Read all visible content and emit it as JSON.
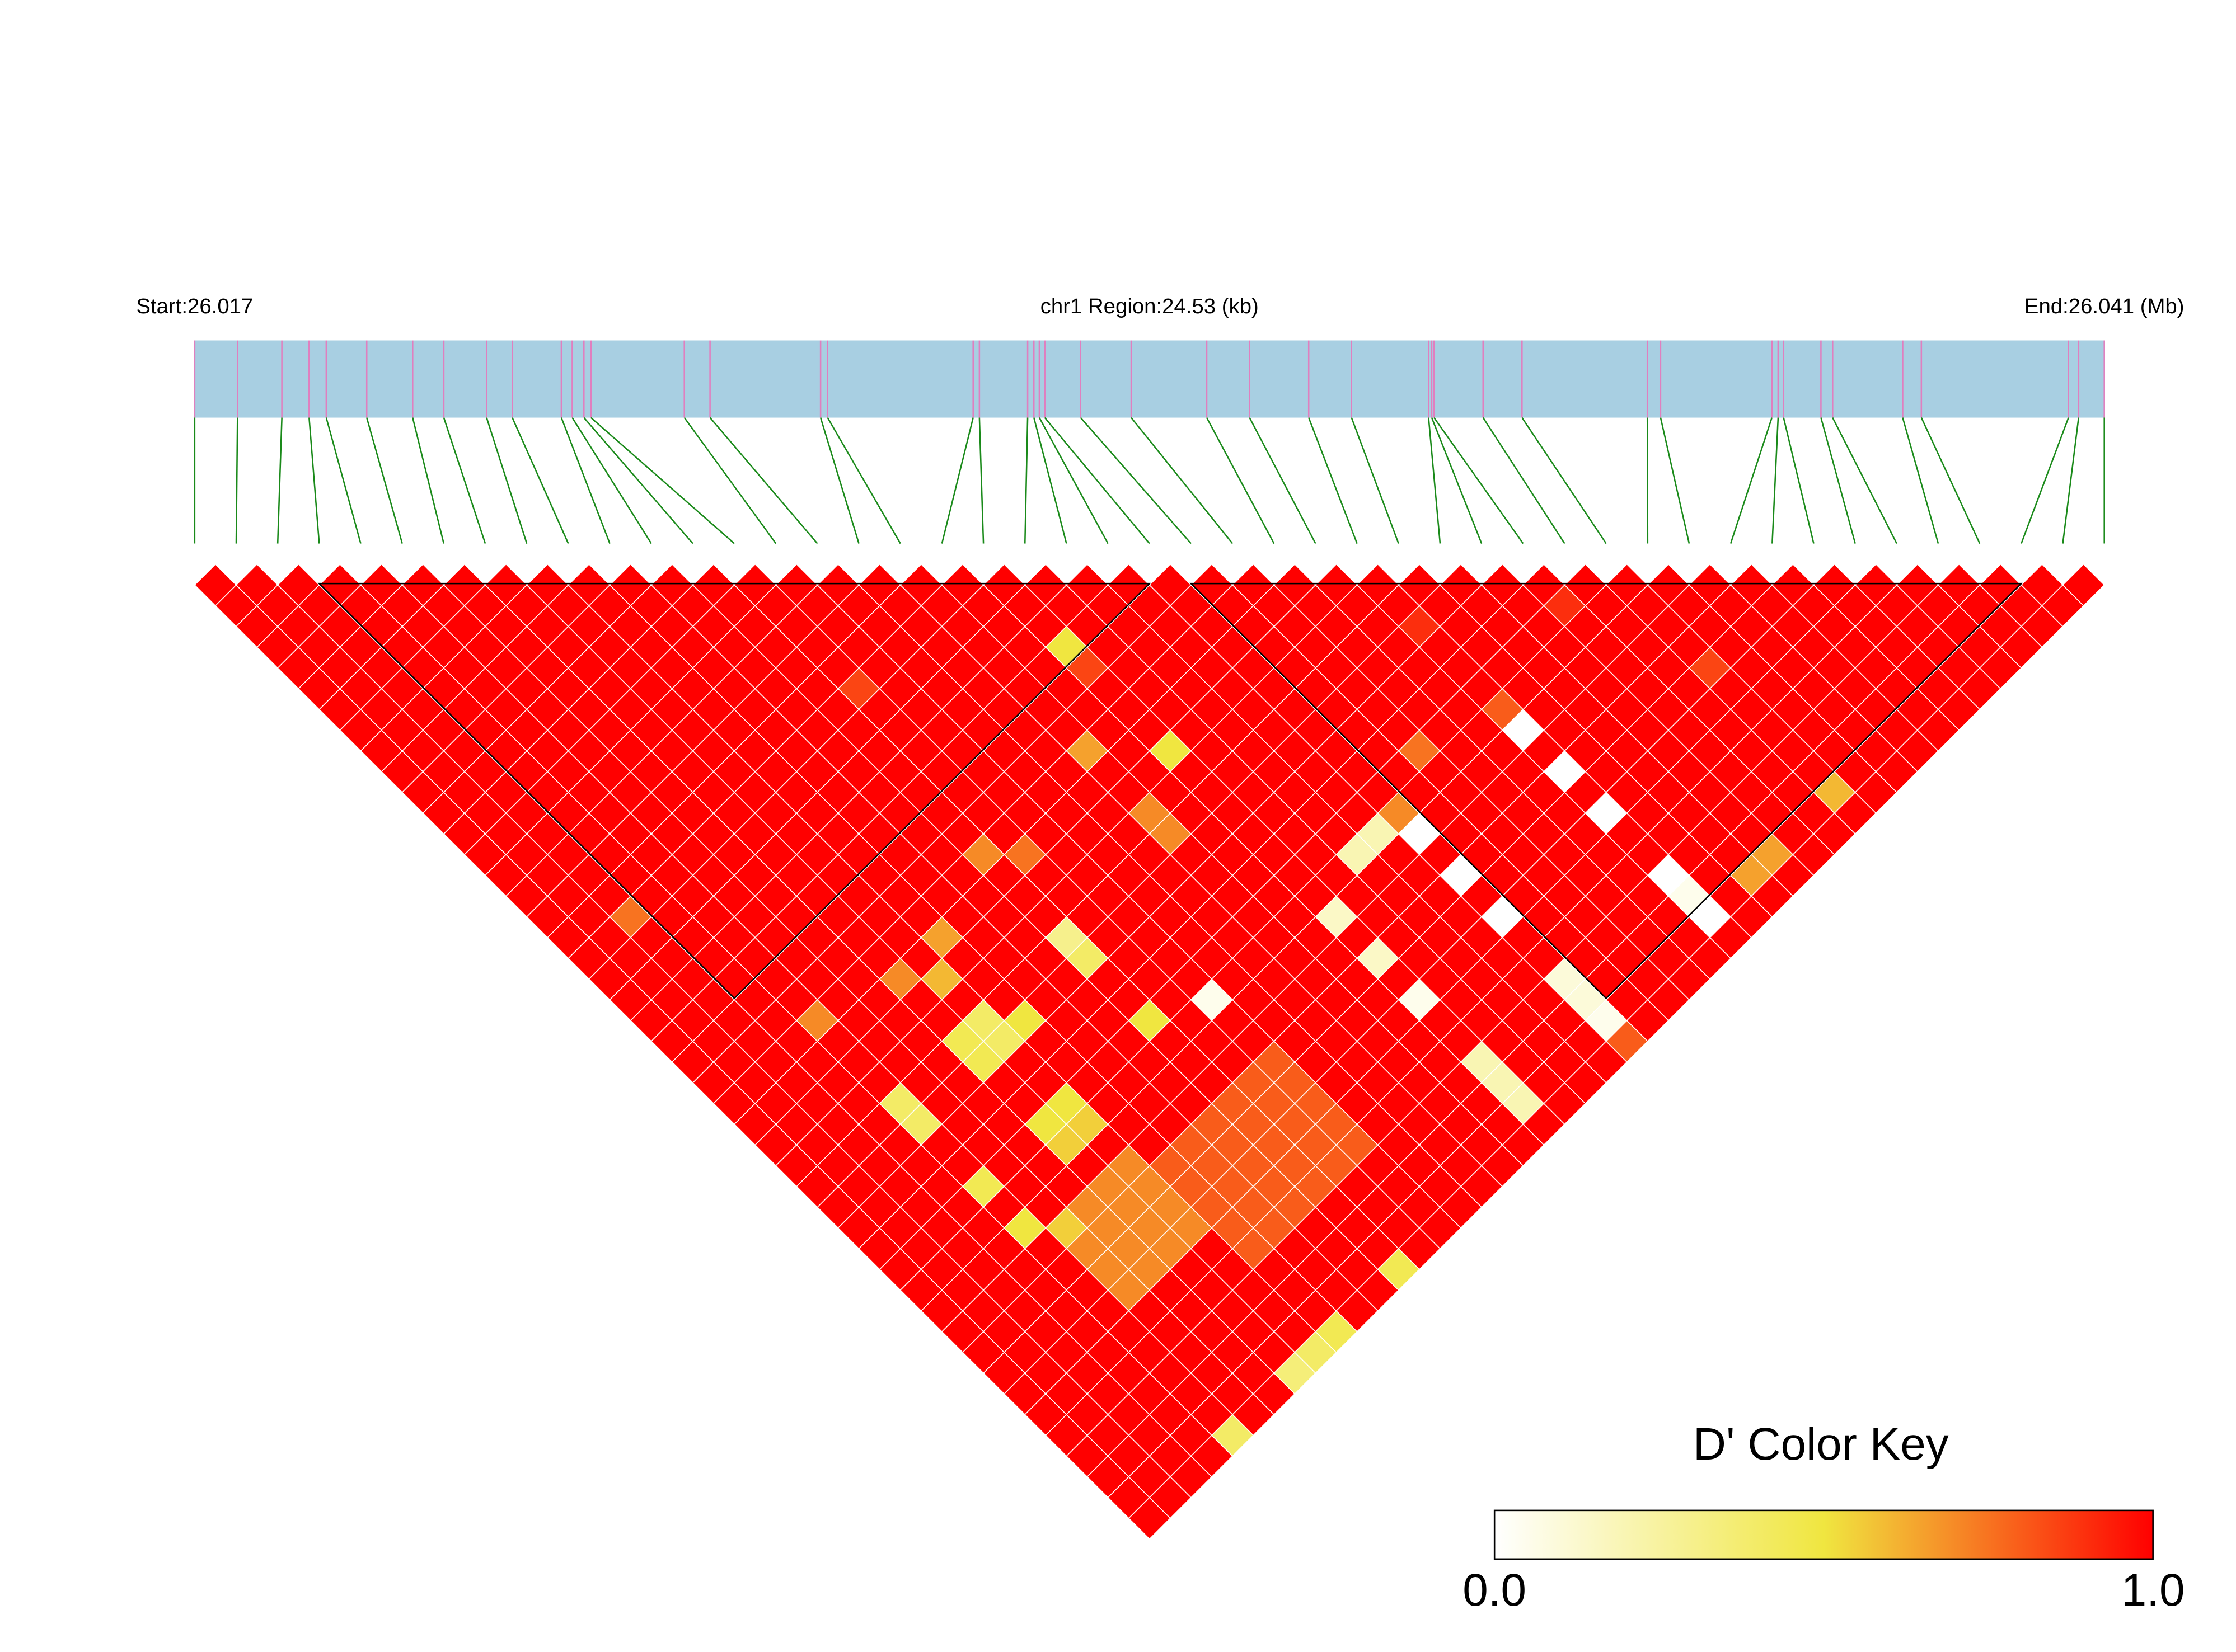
{
  "chart_data": {
    "type": "ld-heatmap",
    "start_label": "Start:26.017",
    "region_label": "chr1 Region:24.53 (kb)",
    "end_label": "End:26.041 (Mb)",
    "xlim": [
      0,
      24.53
    ],
    "snp_positions_kb": [
      0,
      0.55,
      1.12,
      1.47,
      1.69,
      2.21,
      2.8,
      3.2,
      3.75,
      4.08,
      4.71,
      4.85,
      5.0,
      5.09,
      6.29,
      6.62,
      8.04,
      8.13,
      10.0,
      10.08,
      10.7,
      10.78,
      10.85,
      10.92,
      11.38,
      12.03,
      13.0,
      13.55,
      14.31,
      14.86,
      15.85,
      15.89,
      15.92,
      16.55,
      17.05,
      18.66,
      18.83,
      20.26,
      20.34,
      20.41,
      20.89,
      21.04,
      21.94,
      22.18,
      24.07,
      24.2,
      24.53
    ],
    "bar_color": "#a8cfe2",
    "snp_line_color": "#e07fbf",
    "connector_color": "#1a8a1a",
    "block_color": "#000000",
    "blocks": [
      [
        4,
        24
      ],
      [
        25,
        45
      ]
    ],
    "ld_matrix": [
      [
        1,
        1,
        1,
        1,
        1,
        1,
        1,
        1,
        1,
        1,
        1,
        1,
        1,
        1,
        1,
        1,
        1,
        1,
        1,
        1,
        1,
        1,
        1,
        1,
        1,
        1,
        1,
        1,
        1,
        1,
        1,
        1,
        1,
        1,
        1,
        1,
        1,
        1,
        1,
        1,
        1,
        1,
        1,
        1,
        1,
        1
      ],
      [
        1,
        1,
        1,
        1,
        1,
        1,
        1,
        1,
        1,
        1,
        1,
        1,
        1,
        1,
        1,
        1,
        1,
        1,
        1,
        1,
        1,
        1,
        1,
        1,
        1,
        1,
        1,
        1,
        1,
        1,
        1,
        1,
        1,
        1,
        1,
        1,
        1,
        1,
        1,
        1,
        1,
        1,
        1,
        1,
        1
      ],
      [
        1,
        1,
        1,
        1,
        1,
        1,
        1,
        1,
        1,
        1,
        1,
        1,
        1,
        1,
        1,
        1,
        0.75,
        1,
        1,
        1,
        1,
        1,
        1,
        1,
        1,
        1,
        1,
        1,
        1,
        1,
        1,
        1,
        1,
        1,
        1,
        1,
        1,
        1,
        1,
        1,
        1,
        1,
        1,
        1
      ],
      [
        1,
        1,
        1,
        1,
        1,
        1,
        1,
        1,
        1,
        1,
        1,
        1,
        1,
        1,
        1,
        1,
        1,
        1,
        1,
        1,
        1,
        1,
        1,
        1,
        1,
        1,
        1,
        1,
        1,
        1,
        1,
        1,
        1,
        1,
        1,
        1,
        1,
        1,
        1,
        1,
        1,
        1,
        1
      ],
      [
        1,
        1,
        1,
        1,
        1,
        1,
        1,
        1,
        1,
        1,
        1,
        1,
        1,
        1,
        1,
        1,
        1,
        1,
        1,
        1,
        1,
        0.7,
        1,
        1,
        1,
        0.4,
        0.4,
        1,
        1,
        0.45,
        1,
        0.5,
        1,
        1,
        1,
        1,
        1,
        1,
        1,
        1,
        1,
        0.4
      ],
      [
        1,
        1,
        1,
        1,
        1,
        1,
        1,
        1,
        1,
        1,
        1,
        1,
        1,
        1,
        1,
        1,
        1,
        1,
        1,
        1,
        1,
        1,
        1,
        1,
        1,
        1,
        1,
        1,
        1,
        1,
        1,
        0.55,
        0.7,
        0.7,
        0.7,
        1,
        1,
        1,
        1,
        1,
        1
      ],
      [
        1,
        1,
        1,
        1,
        1,
        1,
        1,
        1,
        1,
        1,
        1,
        1,
        1,
        1,
        1,
        1,
        1,
        1,
        1,
        1,
        1,
        1,
        1,
        1,
        1,
        1,
        1,
        1,
        1,
        1,
        0.7,
        0.7,
        0.7,
        0.7,
        1,
        1,
        1,
        1,
        1,
        1
      ],
      [
        1,
        1,
        1,
        1,
        1,
        1,
        1,
        1,
        1,
        1,
        1,
        1,
        1,
        1,
        1,
        1,
        1,
        1,
        1,
        0.7,
        1,
        1,
        0.45,
        0.45,
        1,
        1,
        0.5,
        0.55,
        1,
        0.7,
        0.7,
        0.7,
        0.7,
        1,
        1,
        1,
        1,
        1,
        0.35
      ],
      [
        1,
        1,
        1,
        1,
        1,
        1,
        1,
        1,
        1,
        1,
        1,
        1,
        1,
        1,
        1,
        1,
        1,
        1,
        1,
        0.6,
        1,
        0.4,
        0.4,
        1,
        1,
        0.5,
        0.55,
        1,
        0.7,
        0.7,
        0.7,
        0.7,
        1,
        1,
        1,
        1,
        1,
        0.4
      ],
      [
        1,
        1,
        1,
        1,
        1,
        1,
        1,
        1,
        1,
        1,
        1,
        1,
        1,
        1,
        1,
        1,
        1,
        0.65,
        1,
        1,
        1,
        0.5,
        1,
        1,
        1,
        1,
        1,
        1,
        0.8,
        0.8,
        0.8,
        0.8,
        0.8,
        1,
        1,
        1,
        0.45
      ],
      [
        1,
        1,
        1,
        1,
        1,
        1,
        1,
        1,
        1,
        1,
        1,
        1,
        1,
        1,
        1,
        1,
        1,
        1,
        1,
        1,
        1,
        1,
        1,
        1,
        1,
        1,
        1,
        0.8,
        0.8,
        0.8,
        0.8,
        0.8,
        1,
        1,
        1,
        1
      ],
      [
        1,
        1,
        1,
        1,
        1,
        1,
        1,
        1,
        1,
        1,
        1,
        1,
        1,
        1,
        1,
        1,
        1,
        1,
        1,
        1,
        1,
        1,
        1,
        1,
        1,
        1,
        0.8,
        0.8,
        0.8,
        0.8,
        0.8,
        1,
        1,
        1,
        1
      ],
      [
        1,
        1,
        1,
        1,
        1,
        1,
        1,
        1,
        1,
        1,
        1,
        1,
        1,
        0.7,
        1,
        1,
        1,
        0.3,
        0.4,
        1,
        1,
        0.5,
        1,
        1,
        1,
        0.8,
        0.8,
        0.8,
        0.8,
        0.8,
        1,
        1,
        1,
        0.45
      ],
      [
        1,
        1,
        1,
        1,
        1,
        0.85,
        1,
        1,
        1,
        1,
        1,
        1,
        1,
        0.75,
        1,
        1,
        1,
        1,
        1,
        1,
        1,
        1,
        1,
        1,
        0.8,
        0.8,
        0.8,
        0.8,
        0.8,
        1,
        1,
        1,
        1
      ],
      [
        1,
        1,
        1,
        1,
        1,
        1,
        1,
        1,
        1,
        1,
        1,
        1,
        1,
        1,
        1,
        1,
        1,
        1,
        1,
        1,
        0.05,
        1,
        1,
        0.8,
        0.8,
        0.8,
        0.8,
        0.8,
        1,
        1,
        1,
        1
      ],
      [
        1,
        1,
        1,
        1,
        1,
        1,
        1,
        1,
        1,
        1,
        1,
        1,
        1,
        1,
        1,
        1,
        1,
        1,
        1,
        1,
        1,
        1,
        1,
        1,
        1,
        1,
        1,
        1,
        1,
        1,
        1
      ],
      [
        1,
        1,
        1,
        1,
        1,
        1,
        1,
        1,
        1,
        1,
        1,
        1,
        1,
        1,
        1,
        1,
        1,
        1,
        1,
        1,
        1,
        1,
        1,
        1,
        1,
        1,
        1,
        1,
        1,
        1
      ],
      [
        1,
        1,
        1,
        1,
        1,
        1,
        1,
        1,
        0.65,
        1,
        1,
        0.7,
        0.7,
        1,
        1,
        1,
        1,
        1,
        1,
        1,
        1,
        1,
        1,
        1,
        1,
        1,
        1,
        1,
        1
      ],
      [
        1,
        1,
        1,
        1,
        1,
        1,
        1,
        1,
        1,
        1,
        1,
        1,
        1,
        1,
        1,
        1,
        1,
        1,
        1,
        1,
        1,
        1,
        1,
        1,
        1,
        1,
        1,
        1
      ],
      [
        1,
        1,
        1,
        0.5,
        0.85,
        1,
        1,
        1,
        0.5,
        1,
        1,
        1,
        1,
        1,
        1,
        1,
        0.15,
        1,
        0.15,
        1,
        0.05,
        1,
        1,
        0.2,
        0.2,
        0.2,
        1
      ],
      [
        1,
        1,
        1,
        1,
        1,
        1,
        1,
        1,
        1,
        1,
        1,
        1,
        1,
        1,
        1,
        1,
        1,
        1,
        1,
        1,
        1,
        1,
        1,
        1,
        1,
        1
      ],
      [
        1,
        1,
        1,
        1,
        1,
        1,
        1,
        1,
        1,
        1,
        1,
        1,
        1,
        0.2,
        1,
        1,
        1,
        1,
        1,
        1,
        1,
        1,
        1,
        1,
        1
      ],
      [
        1,
        1,
        1,
        1,
        1,
        1,
        1,
        1,
        1,
        1,
        1,
        1,
        0.2,
        1,
        1,
        1,
        1,
        1,
        1,
        1,
        1,
        1,
        1,
        1
      ],
      [
        1,
        1,
        1,
        1,
        1,
        1,
        1,
        1,
        1,
        1,
        1,
        0.7,
        0,
        1,
        0,
        1,
        0,
        1,
        1,
        0.1,
        0.1,
        0.05,
        0.8
      ],
      [
        1,
        1,
        1,
        1,
        1,
        1,
        1,
        1,
        1,
        1,
        1,
        1,
        1,
        1,
        1,
        1,
        1,
        1,
        1,
        1,
        1,
        1
      ],
      [
        1,
        1,
        1,
        1,
        1,
        1,
        1,
        1,
        0.75,
        1,
        1,
        1,
        1,
        1,
        1,
        1,
        1,
        1,
        1,
        1,
        1
      ],
      [
        1,
        1,
        1,
        1,
        1,
        1,
        1,
        1,
        1,
        1,
        1,
        1,
        1,
        1,
        1,
        1,
        1,
        1,
        1,
        1
      ],
      [
        1,
        1,
        1,
        1,
        1,
        1,
        1,
        1,
        1,
        1,
        1,
        1,
        1,
        1,
        1,
        1,
        1,
        1,
        1
      ],
      [
        1,
        1,
        0.9,
        1,
        1,
        1,
        0.8,
        0,
        1,
        0,
        1,
        0,
        1,
        1,
        0,
        0.05,
        0,
        1
      ],
      [
        1,
        1,
        1,
        1,
        1,
        1,
        1,
        1,
        1,
        1,
        1,
        1,
        1,
        1,
        1,
        1,
        1
      ],
      [
        1,
        1,
        1,
        1,
        1,
        1,
        1,
        1,
        1,
        1,
        1,
        1,
        1,
        1,
        0.65,
        1
      ],
      [
        1,
        1,
        1,
        1,
        1,
        1,
        1,
        1,
        1,
        1,
        1,
        1,
        1,
        0.65,
        1
      ],
      [
        1,
        0.9,
        1,
        1,
        1,
        1,
        1,
        1,
        1,
        1,
        1,
        1,
        1,
        1
      ],
      [
        1,
        1,
        1,
        1,
        1,
        1,
        1,
        1,
        1,
        1,
        1,
        1,
        1
      ],
      [
        1,
        1,
        1,
        1,
        0.85,
        1,
        1,
        1,
        1,
        1,
        0.6,
        1
      ],
      [
        1,
        1,
        1,
        1,
        1,
        1,
        1,
        1,
        1,
        1,
        1
      ],
      [
        1,
        1,
        1,
        1,
        1,
        1,
        1,
        1,
        1,
        1
      ],
      [
        1,
        1,
        1,
        1,
        1,
        1,
        1,
        1,
        1
      ],
      [
        1,
        1,
        1,
        1,
        1,
        1,
        1,
        1
      ],
      [
        1,
        1,
        1,
        1,
        1,
        1,
        1
      ],
      [
        1,
        1,
        1,
        1,
        1,
        1
      ],
      [
        1,
        1,
        1,
        1,
        1
      ],
      [
        1,
        1,
        1,
        1
      ],
      [
        1,
        1,
        1
      ],
      [
        1,
        1
      ],
      [
        1
      ]
    ],
    "color_key": {
      "title": "D' Color Key",
      "colors": [
        "#ffffff",
        "#f0e640",
        "#ff0000"
      ],
      "xlim": [
        0,
        1
      ],
      "xticks": [
        {
          "value": 0,
          "label": "0.0"
        },
        {
          "value": 1,
          "label": "1.0"
        }
      ]
    }
  }
}
